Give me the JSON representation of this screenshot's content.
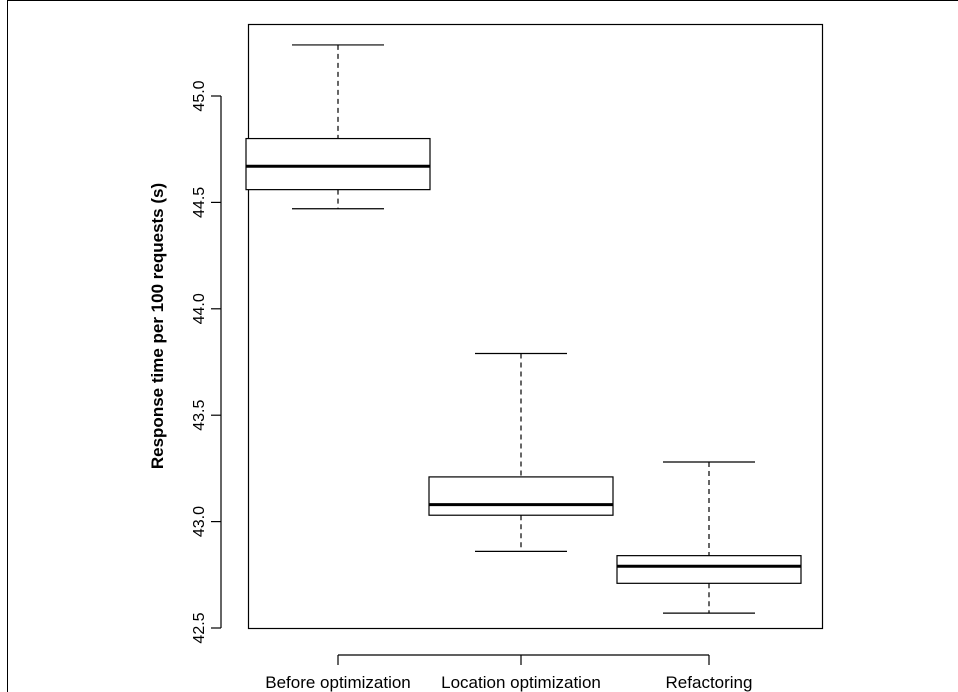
{
  "chart_data": {
    "type": "boxplot",
    "title": "",
    "xlabel": "",
    "ylabel": "Response time per 100 requests (s)",
    "ylim": [
      42.5,
      45.3
    ],
    "yticks": [
      42.5,
      43.0,
      43.5,
      44.0,
      44.5,
      45.0
    ],
    "ytick_labels": [
      "42.5",
      "43.0",
      "43.5",
      "44.0",
      "44.5",
      "45.0"
    ],
    "grid": false,
    "categories": [
      "Before optimization",
      "Location optimization",
      "Refactoring"
    ],
    "boxes": [
      {
        "min": 44.47,
        "q1": 44.56,
        "median": 44.67,
        "q3": 44.8,
        "max": 45.24
      },
      {
        "min": 42.86,
        "q1": 43.03,
        "median": 43.08,
        "q3": 43.21,
        "max": 43.79
      },
      {
        "min": 42.57,
        "q1": 42.71,
        "median": 42.79,
        "q3": 42.84,
        "max": 43.28
      }
    ]
  }
}
